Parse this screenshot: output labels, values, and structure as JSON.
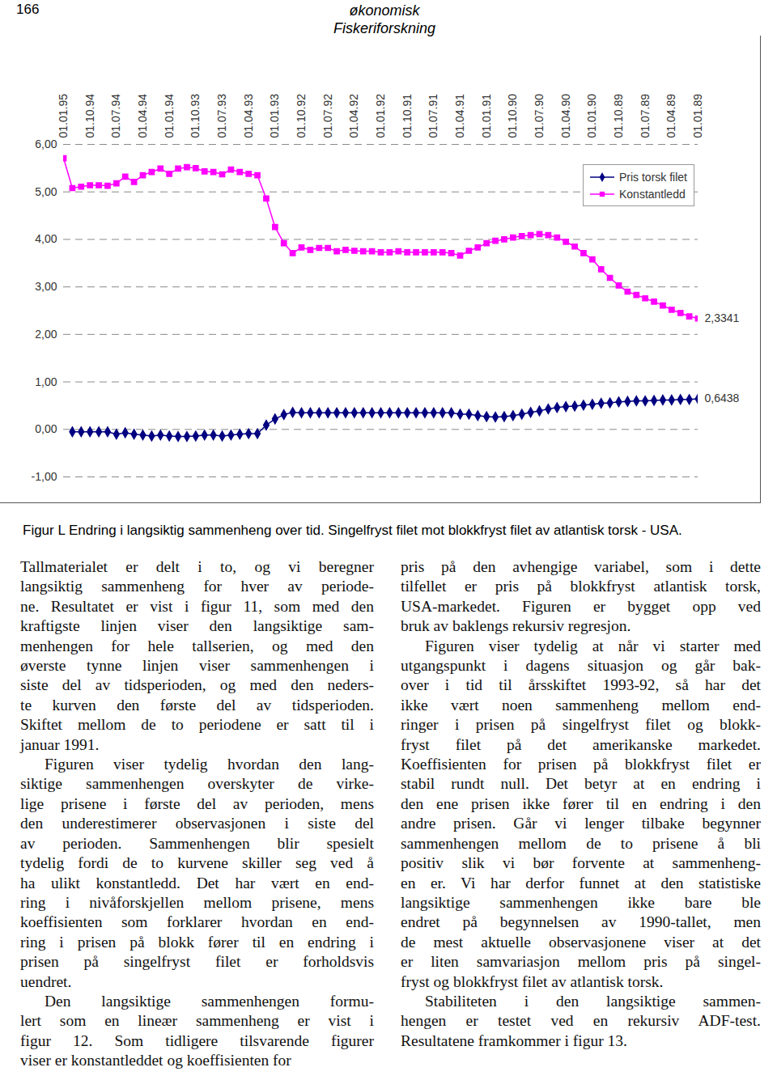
{
  "header": {
    "page": "166",
    "journal": [
      "økonomisk",
      "Fiskeriforskning"
    ]
  },
  "chart_data": {
    "type": "line",
    "categories": [
      "01.01.95",
      null,
      null,
      "01.10.94",
      null,
      null,
      "01.07.94",
      null,
      null,
      "01.04.94",
      null,
      null,
      "01.01.94",
      null,
      null,
      "01.10.93",
      null,
      null,
      "01.07.93",
      null,
      null,
      "01.04.93",
      null,
      null,
      "01.01.93",
      null,
      null,
      "01.10.92",
      null,
      null,
      "01.07.92",
      null,
      null,
      "01.04.92",
      null,
      null,
      "01.01.92",
      null,
      null,
      "01.10.91",
      null,
      null,
      "01.07.91",
      null,
      null,
      "01.04.91",
      null,
      null,
      "01.01.91",
      null,
      null,
      "01.10.90",
      null,
      null,
      "01.07.90",
      null,
      null,
      "01.04.90",
      null,
      null,
      "01.01.90",
      null,
      null,
      "01.10.89",
      null,
      null,
      "01.07.89",
      null,
      null,
      "01.04.89",
      null,
      null,
      "01.01.89"
    ],
    "series": [
      {
        "name": "Pris torsk filet",
        "color": "#000080",
        "marker": "diamond",
        "values": [
          null,
          -0.05,
          -0.05,
          -0.05,
          -0.05,
          -0.05,
          -0.1,
          -0.07,
          -0.1,
          -0.12,
          -0.14,
          -0.12,
          -0.14,
          -0.15,
          -0.15,
          -0.14,
          -0.12,
          -0.12,
          -0.14,
          -0.12,
          -0.1,
          -0.09,
          -0.09,
          0.09,
          0.22,
          0.31,
          0.36,
          0.35,
          0.35,
          0.35,
          0.35,
          0.35,
          0.35,
          0.35,
          0.35,
          0.35,
          0.35,
          0.35,
          0.35,
          0.35,
          0.35,
          0.35,
          0.35,
          0.35,
          0.35,
          0.32,
          0.32,
          0.29,
          0.27,
          0.26,
          0.27,
          0.29,
          0.32,
          0.36,
          0.39,
          0.43,
          0.46,
          0.48,
          0.49,
          0.51,
          0.53,
          0.55,
          0.56,
          0.58,
          0.59,
          0.6,
          0.6,
          0.61,
          0.62,
          0.62,
          0.63,
          0.63,
          0.6438
        ]
      },
      {
        "name": "Konstantledd",
        "color": "#ff00ff",
        "marker": "square",
        "values": [
          5.71,
          5.08,
          5.11,
          5.14,
          5.14,
          5.13,
          5.18,
          5.32,
          5.21,
          5.35,
          5.42,
          5.49,
          5.38,
          5.49,
          5.52,
          5.5,
          5.43,
          5.42,
          5.37,
          5.47,
          5.42,
          5.38,
          5.35,
          4.86,
          4.26,
          3.92,
          3.71,
          3.83,
          3.78,
          3.82,
          3.82,
          3.75,
          3.78,
          3.76,
          3.75,
          3.75,
          3.73,
          3.73,
          3.75,
          3.73,
          3.73,
          3.73,
          3.73,
          3.73,
          3.71,
          3.66,
          3.76,
          3.83,
          3.92,
          3.97,
          4.0,
          4.04,
          4.07,
          4.09,
          4.11,
          4.09,
          4.04,
          3.95,
          3.85,
          3.71,
          3.58,
          3.37,
          3.19,
          3.03,
          2.9,
          2.83,
          2.76,
          2.69,
          2.61,
          2.52,
          2.45,
          2.38,
          2.3341
        ]
      }
    ],
    "annotations": [
      {
        "text": "2,3341",
        "series": "Konstantledd"
      },
      {
        "text": "0,6438",
        "series": "Pris torsk filet"
      }
    ],
    "ylim": [
      -1,
      6
    ],
    "yticks": [
      {
        "value": -1,
        "label": "-1,00"
      },
      {
        "value": 0,
        "label": "0,00"
      },
      {
        "value": 1,
        "label": "1,00"
      },
      {
        "value": 2,
        "label": "2,00"
      },
      {
        "value": 3,
        "label": "3,00"
      },
      {
        "value": 4,
        "label": "4,00"
      },
      {
        "value": 5,
        "label": "5,00"
      },
      {
        "value": 6,
        "label": "6,00"
      }
    ],
    "grid": true,
    "legend": "top-right"
  },
  "caption": "Figur L  Endring i langsiktig sammenheng over tid. Singelfryst filet mot blokkfryst filet av atlantisk torsk - USA.",
  "columns": [
    [
      [
        "Tallmaterialet er delt i to, og vi beregner",
        "langsiktig sammenheng for hver av periode-",
        "ne. Resultatet er vist i figur 11, som med den",
        "kraftigste linjen viser den langsiktige sam-",
        "menhengen for hele tallserien, og med den",
        "øverste tynne linjen viser sammenhengen i",
        "siste del av tidsperioden, og med den neders-",
        "te kurven den første del av tidsperioden.",
        "Skiftet mellom de to periodene er satt til i",
        "januar 1991."
      ],
      [
        "Figuren viser tydelig hvordan den lang-",
        "siktige sammenhengen overskyter de virke-",
        "lige prisene i første del av perioden, mens",
        "den underestimerer observasjonen i siste del",
        "av perioden. Sammenhengen blir spesielt",
        "tydelig fordi de to kurvene skiller seg ved å",
        "ha ulikt konstantledd. Det har vært en end-",
        "ring i nivåforskjellen mellom prisene, mens",
        "koeffisienten som forklarer hvordan en end-",
        "ring i prisen på blokk fører til en endring i",
        "prisen på singelfryst filet er forholdsvis",
        "uendret."
      ],
      [
        "Den langsiktige sammenhengen formu-",
        "lert som en lineær sammenheng er vist i",
        "figur 12. Som tidligere tilsvarende figurer",
        "viser er konstantleddet og koeffisienten for"
      ]
    ],
    [
      [
        "pris på den avhengige variabel, som i dette",
        "tilfellet er pris på blokkfryst atlantisk torsk,",
        "USA-markedet. Figuren er bygget opp ved",
        "bruk av baklengs rekursiv regresjon."
      ],
      [
        "Figuren viser tydelig at når vi starter med",
        "utgangspunkt i dagens situasjon og går bak-",
        "over i tid til årsskiftet 1993-92, så har det",
        "ikke vært noen sammenheng mellom end-",
        "ringer i prisen på singelfryst filet og blokk-",
        "fryst filet på det amerikanske markedet.",
        "Koeffisienten for prisen på blokkfryst filet er",
        "stabil rundt null. Det betyr at en endring i",
        "den ene prisen ikke fører til en endring i den",
        "andre prisen. Går vi lenger tilbake begynner",
        "sammenhengen mellom de to prisene å bli",
        "positiv slik vi bør forvente at sammenheng-",
        "en er. Vi har derfor funnet at den statistiske",
        "langsiktige sammenhengen ikke bare ble",
        "endret på begynnelsen av 1990-tallet, men",
        "de mest aktuelle observasjonene viser at det",
        "er liten samvariasjon mellom pris på singel-",
        "fryst og blokkfryst filet av atlantisk torsk."
      ],
      [
        "Stabiliteten i den langsiktige sammen-",
        "hengen er testet ved en rekursiv ADF-test.",
        "Resultatene framkommer i figur 13."
      ]
    ]
  ]
}
